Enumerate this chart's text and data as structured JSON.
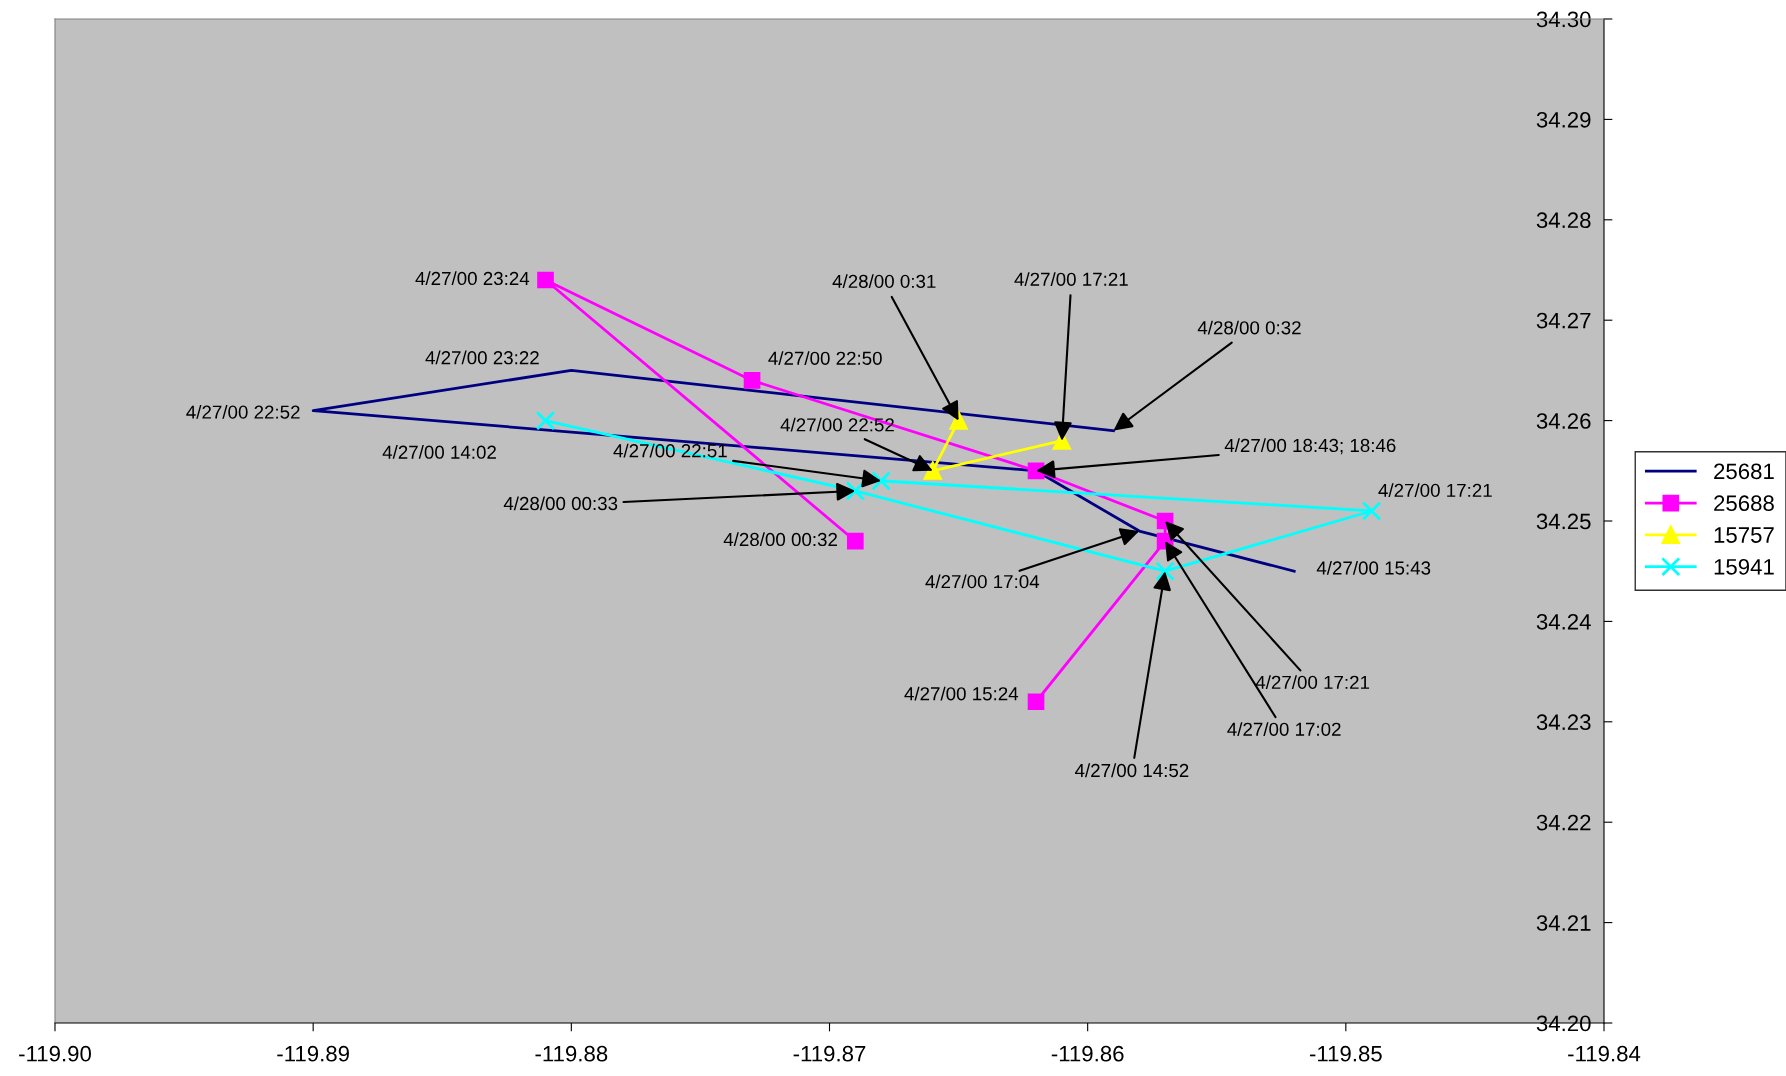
{
  "chart_data": {
    "type": "line",
    "series": [
      {
        "name": "25681",
        "color": "#000080",
        "marker": "none",
        "x": [
          -119.852,
          -119.858,
          -119.862,
          -119.89,
          -119.88,
          -119.859
        ],
        "values": [
          34.245,
          34.249,
          34.255,
          34.261,
          34.265,
          34.259
        ]
      },
      {
        "name": "25688",
        "color": "#ff00ff",
        "marker": "square",
        "x": [
          -119.862,
          -119.857,
          -119.857,
          -119.862,
          -119.873,
          -119.881,
          -119.869
        ],
        "values": [
          34.232,
          34.248,
          34.25,
          34.255,
          34.264,
          34.274,
          34.248
        ]
      },
      {
        "name": "15757",
        "color": "#ffff00",
        "marker": "triangle",
        "x": [
          -119.865,
          -119.866,
          -119.861
        ],
        "values": [
          34.26,
          34.255,
          34.258
        ]
      },
      {
        "name": "15941",
        "color": "#00ffff",
        "marker": "cross",
        "x": [
          -119.881,
          -119.869,
          -119.857,
          -119.849,
          -119.868
        ],
        "values": [
          34.26,
          34.253,
          34.245,
          34.251,
          34.254
        ]
      }
    ],
    "xlim": [
      -119.9,
      -119.84
    ],
    "xticks": [
      {
        "value": -119.9,
        "label": "-119.90"
      },
      {
        "value": -119.89,
        "label": "-119.89"
      },
      {
        "value": -119.88,
        "label": "-119.88"
      },
      {
        "value": -119.87,
        "label": "-119.87"
      },
      {
        "value": -119.86,
        "label": "-119.86"
      },
      {
        "value": -119.85,
        "label": "-119.85"
      },
      {
        "value": -119.84,
        "label": "-119.84"
      }
    ],
    "ylim": [
      34.2,
      34.3
    ],
    "yticks": [
      {
        "value": 34.2,
        "label": "34.20"
      },
      {
        "value": 34.21,
        "label": "34.21"
      },
      {
        "value": 34.22,
        "label": "34.22"
      },
      {
        "value": 34.23,
        "label": "34.23"
      },
      {
        "value": 34.24,
        "label": "34.24"
      },
      {
        "value": 34.25,
        "label": "34.25"
      },
      {
        "value": 34.26,
        "label": "34.26"
      },
      {
        "value": 34.27,
        "label": "34.27"
      },
      {
        "value": 34.28,
        "label": "34.28"
      },
      {
        "value": 34.29,
        "label": "34.29"
      },
      {
        "value": 34.3,
        "label": "34.30"
      }
    ],
    "grid": false,
    "legend": "right",
    "line_style": "solid",
    "annotations": [
      {
        "text": "4/27/00 23:24",
        "x": -119.881,
        "y": 34.274
      },
      {
        "text": "4/27/00 22:50",
        "x": -119.873,
        "y": 34.264
      },
      {
        "text": "4/27/00 23:22",
        "x": -119.88,
        "y": 34.265
      },
      {
        "text": "4/27/00 22:52",
        "x": -119.89,
        "y": 34.261
      },
      {
        "text": "4/27/00 14:02",
        "x": -119.881,
        "y": 34.26
      },
      {
        "text": "4/27/00 22:52",
        "x": -119.866,
        "y": 34.255
      },
      {
        "text": "4/27/00 22:51",
        "x": -119.868,
        "y": 34.254
      },
      {
        "text": "4/28/00 00:33",
        "x": -119.869,
        "y": 34.253
      },
      {
        "text": "4/28/00 00:32",
        "x": -119.869,
        "y": 34.248
      },
      {
        "text": "4/28/00 0:31",
        "x": -119.865,
        "y": 34.26
      },
      {
        "text": "4/27/00 17:21",
        "x": -119.861,
        "y": 34.258
      },
      {
        "text": "4/28/00 0:32",
        "x": -119.859,
        "y": 34.259
      },
      {
        "text": "4/27/00 18:43; 18:46",
        "x": -119.862,
        "y": 34.255
      },
      {
        "text": "4/27/00 17:21",
        "x": -119.849,
        "y": 34.251
      },
      {
        "text": "4/27/00 15:43",
        "x": -119.852,
        "y": 34.245
      },
      {
        "text": "4/27/00 17:04",
        "x": -119.858,
        "y": 34.249
      },
      {
        "text": "4/27/00 17:21",
        "x": -119.857,
        "y": 34.25
      },
      {
        "text": "4/27/00 17:02",
        "x": -119.857,
        "y": 34.248
      },
      {
        "text": "4/27/00 14:52",
        "x": -119.857,
        "y": 34.245
      },
      {
        "text": "4/27/00 15:24",
        "x": -119.862,
        "y": 34.232
      }
    ]
  }
}
